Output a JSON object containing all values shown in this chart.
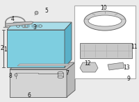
{
  "bg_color": "#ebebeb",
  "battery_face_color": "#7ecee0",
  "battery_top_color": "#a8dce8",
  "battery_right_color": "#5ab0c8",
  "battery_outline": "#555555",
  "part_color": "#c8c8c8",
  "part_outline": "#555555",
  "tray_face_color": "#d4d4d4",
  "tray_top_color": "#c0c0c0",
  "tray_right_color": "#b8b8b8",
  "box_face_color": "#ffffff",
  "box_outline": "#999999",
  "label_color": "#111111",
  "label_fs": 5.5,
  "lw": 0.6
}
